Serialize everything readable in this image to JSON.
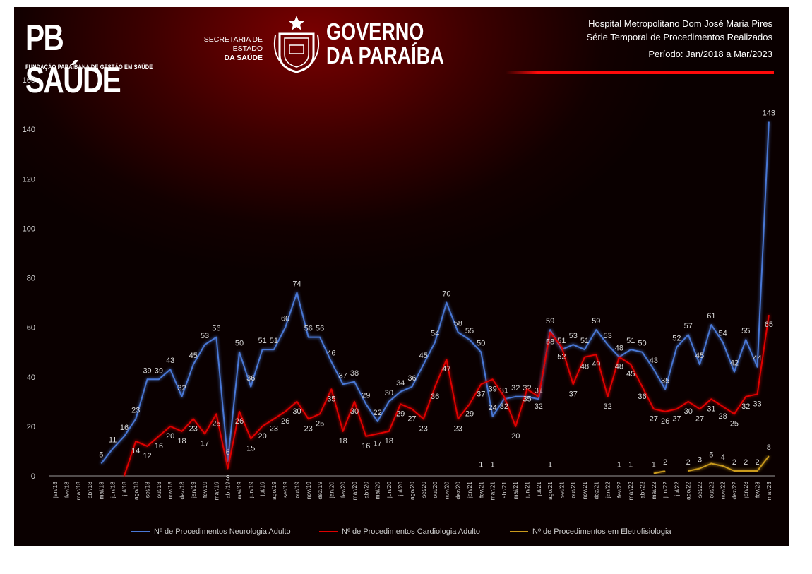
{
  "header": {
    "logo_pb": "PB SAÚDE",
    "logo_pb_sub": "FUNDAÇÃO PARAIBANA DE GESTÃO EM SAÚDE",
    "secretaria_line1": "SECRETARIA DE ESTADO",
    "secretaria_line2": "DA SAÚDE",
    "governo_line1": "GOVERNO",
    "governo_line2": "DA PARAÍBA",
    "hospital": "Hospital Metropolitano Dom José Maria Pires",
    "subtitle": "Série Temporal de Procedimentos Realizados",
    "period": "Período: Jan/2018 a Mar/2023"
  },
  "colors": {
    "neurologia": "#4a78d6",
    "cardiologia": "#e00000",
    "eletrofisiologia": "#c99a1c",
    "label": "#d8d8d8",
    "axis": "#9a9a9a"
  },
  "chart_data": {
    "type": "line",
    "ylim": [
      0,
      160
    ],
    "yticks": [
      0,
      20,
      40,
      60,
      80,
      100,
      120,
      140,
      160
    ],
    "categories": [
      "jan/18",
      "fev/18",
      "mar/18",
      "abr/18",
      "mai/18",
      "jun/18",
      "jul/18",
      "ago/18",
      "set/18",
      "out/18",
      "nov/18",
      "dez/18",
      "jan/19",
      "fev/19",
      "mar/19",
      "abr/19",
      "mai/19",
      "jun/19",
      "jul/19",
      "ago/19",
      "set/19",
      "out/19",
      "nov/19",
      "dez/19",
      "jan/20",
      "fev/20",
      "mar/20",
      "abr/20",
      "mai/20",
      "jun/20",
      "jul/20",
      "ago/20",
      "set/20",
      "out/20",
      "nov/20",
      "dez/20",
      "jan/21",
      "fev/21",
      "mar/21",
      "abr/21",
      "mai/21",
      "jun/21",
      "jul/21",
      "ago/21",
      "set/21",
      "out/21",
      "nov/21",
      "dez/21",
      "jan/22",
      "fev/22",
      "mar/22",
      "abr/22",
      "mai/22",
      "jun/22",
      "jul/22",
      "ago/22",
      "set/22",
      "out/22",
      "nov/22",
      "dez/22",
      "jan/23",
      "fev/23",
      "mar/23"
    ],
    "legend_placement": "bottom",
    "series": [
      {
        "name": "Nº de Procedimentos Neurologia Adulto",
        "color_key": "neurologia",
        "label_pos": "above",
        "values": [
          null,
          null,
          null,
          null,
          5,
          11,
          16,
          23,
          39,
          39,
          43,
          32,
          45,
          53,
          56,
          6,
          50,
          36,
          51,
          51,
          60,
          74,
          56,
          56,
          46,
          37,
          38,
          29,
          22,
          30,
          34,
          36,
          45,
          54,
          70,
          58,
          55,
          50,
          24,
          31,
          32,
          32,
          31,
          59,
          51,
          53,
          51,
          59,
          53,
          48,
          51,
          50,
          43,
          35,
          52,
          57,
          45,
          61,
          54,
          42,
          55,
          44,
          143
        ]
      },
      {
        "name": "Nº de Procedimentos Cardiologia Adulto",
        "color_key": "cardiologia",
        "label_pos": "below",
        "values": [
          null,
          null,
          null,
          null,
          null,
          null,
          0,
          14,
          12,
          16,
          20,
          18,
          23,
          17,
          25,
          3,
          26,
          15,
          20,
          23,
          26,
          30,
          23,
          25,
          35,
          18,
          30,
          16,
          17,
          18,
          29,
          27,
          23,
          36,
          47,
          23,
          29,
          37,
          39,
          32,
          20,
          35,
          32,
          58,
          52,
          37,
          48,
          49,
          32,
          48,
          45,
          36,
          27,
          26,
          27,
          30,
          27,
          31,
          28,
          25,
          32,
          33,
          65
        ]
      },
      {
        "name": "Nº de Procedimentos em Eletrofisiologia",
        "color_key": "eletrofisiologia",
        "label_pos": "above",
        "values": [
          null,
          null,
          null,
          null,
          null,
          null,
          null,
          null,
          null,
          null,
          null,
          null,
          null,
          null,
          null,
          null,
          null,
          null,
          null,
          null,
          null,
          null,
          null,
          null,
          null,
          null,
          null,
          null,
          null,
          null,
          null,
          null,
          null,
          null,
          null,
          null,
          null,
          1,
          1,
          null,
          null,
          null,
          null,
          1,
          null,
          null,
          null,
          null,
          null,
          1,
          1,
          null,
          1,
          2,
          null,
          2,
          3,
          5,
          4,
          2,
          2,
          2,
          8
        ]
      }
    ]
  }
}
